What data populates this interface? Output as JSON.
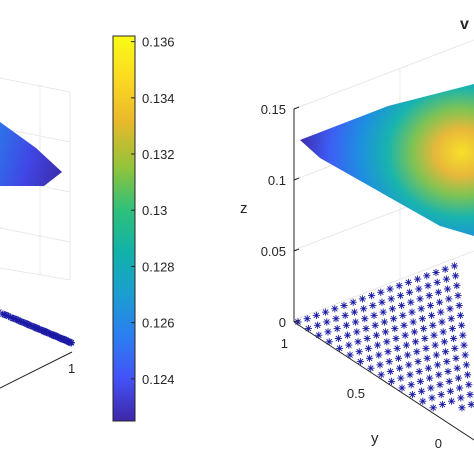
{
  "colors": {
    "colormap": [
      "#3e26a8",
      "#4352f6",
      "#2c7ef0",
      "#1b9ed0",
      "#11b2a8",
      "#2fc07a",
      "#93c33a",
      "#e9b92a",
      "#fbda22",
      "#f9fb15"
    ],
    "marker": "#1a1aa5",
    "axis": "#262626",
    "grid": "#e3e3e3"
  },
  "icons": {
    "marker": "asterisk-marker"
  },
  "title_fragment": "v",
  "chart_data": [
    {
      "type": "surface",
      "description_of_view": "left panel, cropped at left edge",
      "colormap": "parula",
      "clim": [
        0.1225,
        0.1362
      ],
      "x_tick_labels_visible": [
        "1"
      ],
      "surface_value_range": [
        0.123,
        0.127
      ],
      "scatter_plane_z": 0,
      "scatter_marker": "*"
    },
    {
      "type": "colorbar",
      "ticks": [
        0.136,
        0.134,
        0.132,
        0.13,
        0.128,
        0.126,
        0.124
      ],
      "tick_labels": [
        "0.136",
        "0.134",
        "0.132",
        "0.13",
        "0.128",
        "0.126",
        "0.124"
      ],
      "range": [
        0.1225,
        0.1362
      ]
    },
    {
      "type": "surface",
      "description_of_view": "right panel, cropped at right edge",
      "colormap": "parula",
      "zlabel": "z",
      "ylabel": "y",
      "zlim": [
        0,
        0.15
      ],
      "z_ticks": [
        0,
        0.05,
        0.1,
        0.15
      ],
      "z_tick_labels": [
        "0",
        "0.05",
        "0.1",
        "0.15"
      ],
      "y_ticks": [
        1,
        0.5,
        0
      ],
      "y_tick_labels": [
        "1",
        "0.5",
        "0"
      ],
      "surface_value_range": [
        0.123,
        0.136
      ],
      "scatter_plane_z": 0,
      "scatter_marker": "*"
    }
  ]
}
